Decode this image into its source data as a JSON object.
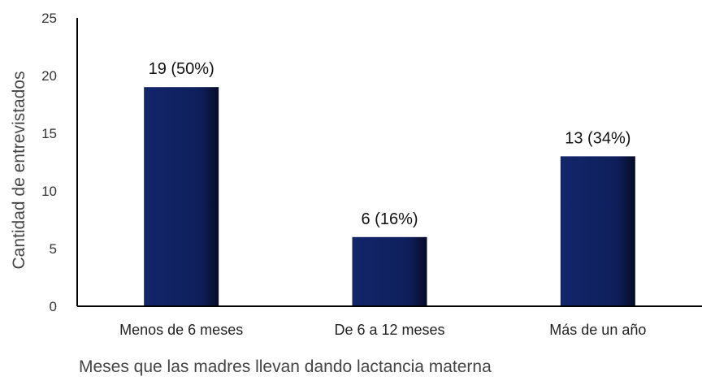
{
  "chart_data": {
    "type": "bar",
    "categories": [
      "Menos de 6 meses",
      "De 6 a 12 meses",
      "Más de un año"
    ],
    "values": [
      19,
      6,
      13
    ],
    "data_labels": [
      "19 (50%)",
      "6 (16%)",
      "13 (34%)"
    ],
    "title": "",
    "xlabel": "Meses que las madres llevan dando lactancia materna",
    "ylabel": "Cantidad de entrevistados",
    "ylim": [
      0,
      25
    ],
    "yticks": [
      "0",
      "5",
      "10",
      "15",
      "20",
      "25"
    ],
    "grid": false,
    "legend": "none",
    "colors": {
      "bar": "#0f1f5c",
      "bar_edge": "#060d2a",
      "axis": "#000000"
    }
  }
}
